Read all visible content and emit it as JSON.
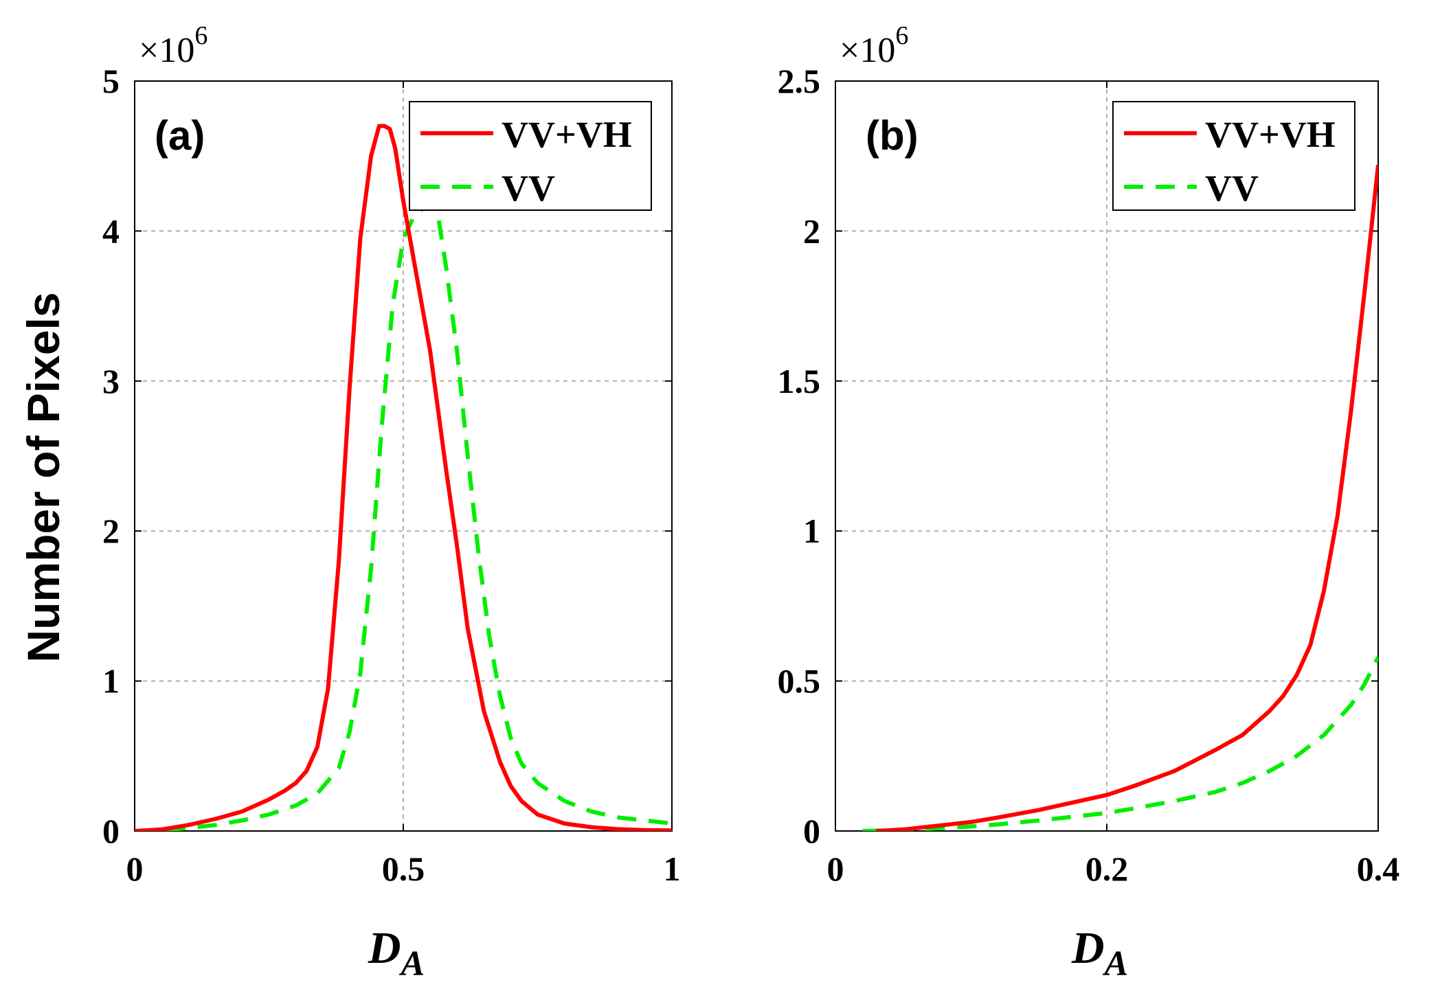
{
  "figure": {
    "ylabel": "Number of Pixels"
  },
  "chart_data": [
    {
      "type": "line",
      "panel_label": "(a)",
      "xlabel_main": "D",
      "xlabel_sub": "A",
      "ylabel": "Number of Pixels",
      "y_multiplier_base": "×10",
      "y_multiplier_exp": "6",
      "xlim": [
        0,
        1
      ],
      "ylim": [
        0,
        5
      ],
      "xticks": [
        0,
        0.5,
        1
      ],
      "xtick_labels": [
        "0",
        "0.5",
        "1"
      ],
      "yticks": [
        0,
        1,
        2,
        3,
        4,
        5
      ],
      "ytick_labels": [
        "0",
        "1",
        "2",
        "3",
        "4",
        "5"
      ],
      "grid": true,
      "legend_position": "top-right",
      "series": [
        {
          "name": "VV+VH",
          "style": "solid",
          "color": "#ff0000",
          "x": [
            0,
            0.05,
            0.1,
            0.15,
            0.2,
            0.25,
            0.28,
            0.3,
            0.32,
            0.34,
            0.36,
            0.38,
            0.4,
            0.42,
            0.44,
            0.455,
            0.465,
            0.475,
            0.485,
            0.5,
            0.52,
            0.55,
            0.58,
            0.6,
            0.62,
            0.65,
            0.68,
            0.7,
            0.72,
            0.75,
            0.8,
            0.85,
            0.9,
            0.95,
            1.0
          ],
          "y": [
            0,
            0.01,
            0.04,
            0.08,
            0.13,
            0.21,
            0.27,
            0.32,
            0.4,
            0.56,
            0.95,
            1.8,
            2.95,
            3.95,
            4.5,
            4.7,
            4.7,
            4.68,
            4.55,
            4.2,
            3.8,
            3.2,
            2.4,
            1.9,
            1.35,
            0.8,
            0.46,
            0.3,
            0.2,
            0.11,
            0.05,
            0.025,
            0.012,
            0.006,
            0.003
          ]
        },
        {
          "name": "VV",
          "style": "dashed",
          "color": "#00ee00",
          "x": [
            0,
            0.05,
            0.1,
            0.15,
            0.2,
            0.25,
            0.3,
            0.34,
            0.38,
            0.4,
            0.42,
            0.44,
            0.46,
            0.48,
            0.5,
            0.52,
            0.54,
            0.555,
            0.565,
            0.58,
            0.6,
            0.62,
            0.64,
            0.66,
            0.68,
            0.7,
            0.72,
            0.75,
            0.8,
            0.85,
            0.9,
            0.95,
            1.0
          ],
          "y": [
            0,
            0.005,
            0.02,
            0.04,
            0.07,
            0.11,
            0.17,
            0.25,
            0.42,
            0.66,
            1.05,
            1.75,
            2.7,
            3.5,
            3.95,
            4.1,
            4.16,
            4.18,
            4.1,
            3.75,
            3.2,
            2.5,
            1.85,
            1.3,
            0.9,
            0.62,
            0.45,
            0.32,
            0.2,
            0.13,
            0.09,
            0.07,
            0.05
          ]
        }
      ]
    },
    {
      "type": "line",
      "panel_label": "(b)",
      "xlabel_main": "D",
      "xlabel_sub": "A",
      "ylabel": "",
      "y_multiplier_base": "×10",
      "y_multiplier_exp": "6",
      "xlim": [
        0,
        0.4
      ],
      "ylim": [
        0,
        2.5
      ],
      "xticks": [
        0,
        0.2,
        0.4
      ],
      "xtick_labels": [
        "0",
        "0.2",
        "0.4"
      ],
      "yticks": [
        0,
        0.5,
        1,
        1.5,
        2,
        2.5
      ],
      "ytick_labels": [
        "0",
        "0.5",
        "1",
        "1.5",
        "2",
        "2.5"
      ],
      "grid": true,
      "legend_position": "top-right",
      "series": [
        {
          "name": "VV+VH",
          "style": "solid",
          "color": "#ff0000",
          "x": [
            0.03,
            0.05,
            0.08,
            0.1,
            0.12,
            0.15,
            0.18,
            0.2,
            0.22,
            0.25,
            0.28,
            0.3,
            0.32,
            0.33,
            0.34,
            0.35,
            0.36,
            0.37,
            0.38,
            0.39,
            0.4
          ],
          "y": [
            0,
            0.005,
            0.02,
            0.03,
            0.045,
            0.07,
            0.1,
            0.12,
            0.15,
            0.2,
            0.27,
            0.32,
            0.4,
            0.45,
            0.52,
            0.62,
            0.8,
            1.05,
            1.4,
            1.8,
            2.22
          ]
        },
        {
          "name": "VV",
          "style": "dashed",
          "color": "#00ee00",
          "x": [
            0.02,
            0.05,
            0.08,
            0.1,
            0.12,
            0.15,
            0.18,
            0.2,
            0.22,
            0.25,
            0.28,
            0.3,
            0.32,
            0.34,
            0.36,
            0.38,
            0.39,
            0.4
          ],
          "y": [
            0,
            0.003,
            0.01,
            0.015,
            0.022,
            0.035,
            0.05,
            0.06,
            0.075,
            0.1,
            0.13,
            0.16,
            0.2,
            0.25,
            0.32,
            0.42,
            0.49,
            0.58
          ]
        }
      ]
    }
  ]
}
